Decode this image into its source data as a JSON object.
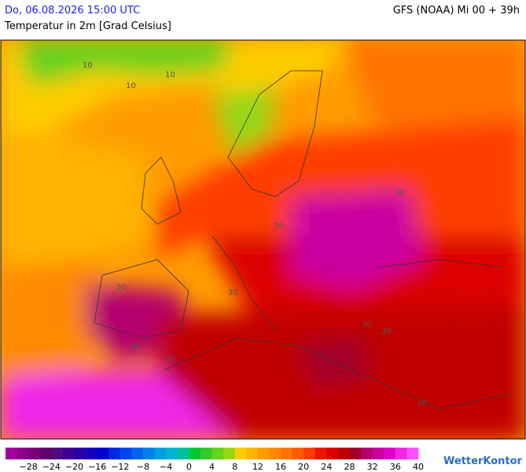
{
  "header": {
    "datetime": "Do, 06.08.2026 15:00 UTC",
    "model": "GFS (NOAA) Mi 00 + 39h",
    "subtitle": "Temperatur in 2m [Grad Celsius]"
  },
  "map": {
    "contour_labels": [
      "10",
      "10",
      "10",
      "30",
      "30",
      "30",
      "30",
      "30",
      "30",
      "30",
      "30",
      "30"
    ]
  },
  "legend": {
    "ticks": [
      "−28",
      "−24",
      "−20",
      "−16",
      "−12",
      "−8",
      "−4",
      "0",
      "4",
      "8",
      "12",
      "16",
      "20",
      "24",
      "28",
      "32",
      "36",
      "40"
    ],
    "colors": [
      "#a000a0",
      "#8c008c",
      "#780078",
      "#64006e",
      "#500a82",
      "#3c0096",
      "#2800aa",
      "#1400be",
      "#0000d2",
      "#0028e6",
      "#0046f0",
      "#0064f0",
      "#0082ea",
      "#00a0e0",
      "#00b4d2",
      "#00c0a0",
      "#00c832",
      "#32cd28",
      "#64d21e",
      "#96d814",
      "#ffcc00",
      "#ffb400",
      "#ff9c00",
      "#ff8800",
      "#ff7400",
      "#ff5a00",
      "#ff3c00",
      "#f01400",
      "#dc0000",
      "#c00000",
      "#a0002a",
      "#b4006e",
      "#cc00a0",
      "#e000c8",
      "#f028e6",
      "#ff50ff"
    ]
  },
  "brand": "WetterKontor"
}
